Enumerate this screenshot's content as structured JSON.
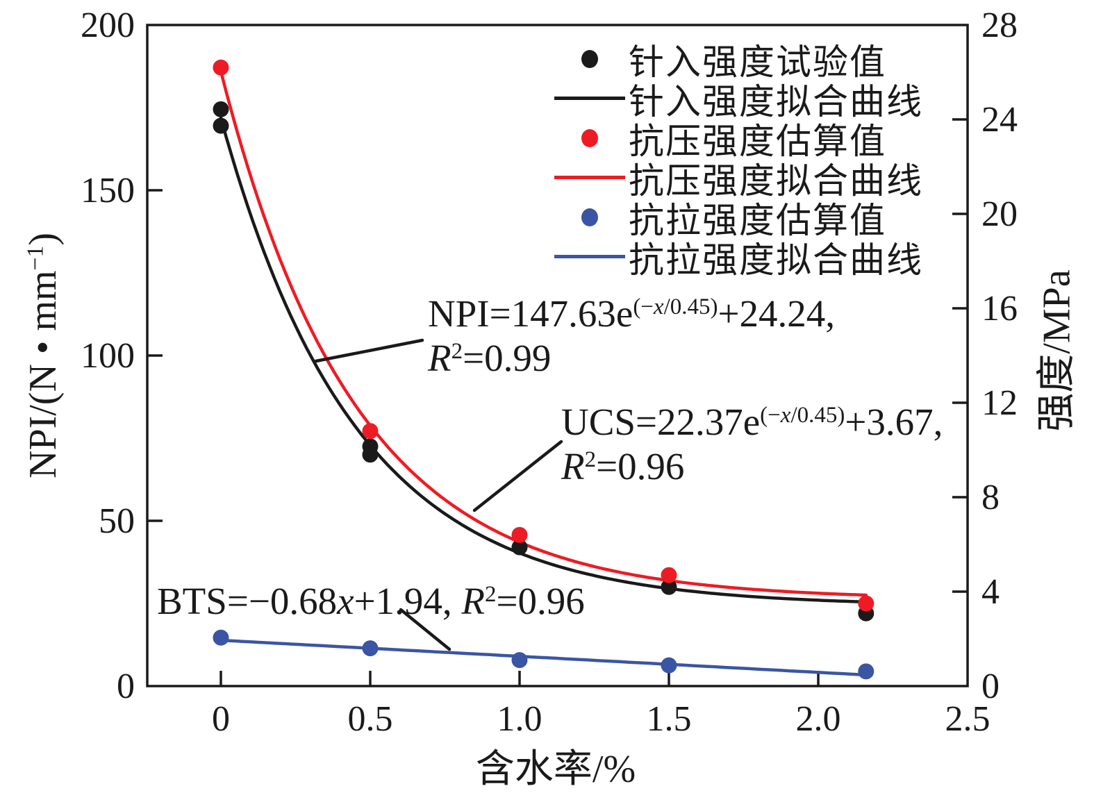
{
  "chart_data": {
    "type": "scatter",
    "title": "",
    "x_axis": {
      "label": "含水率/%",
      "ticks": [
        0,
        0.5,
        1.0,
        1.5,
        2.0,
        2.5
      ],
      "tick_labels": [
        "0",
        "0.5",
        "1.0",
        "1.5",
        "2.0",
        "2.5"
      ],
      "range": [
        -0.25,
        2.5
      ]
    },
    "y_left": {
      "label": "NPI/(N·mm−1)",
      "label_segments": [
        {
          "t": "NPI/(N • mm"
        },
        {
          "t": "−1",
          "sup": true
        },
        {
          "t": ")"
        }
      ],
      "ticks": [
        0,
        50,
        100,
        150,
        200
      ],
      "tick_labels": [
        "0",
        "50",
        "100",
        "150",
        "200"
      ],
      "range": [
        0,
        200
      ]
    },
    "y_right": {
      "label": "强度/MPa",
      "ticks": [
        0,
        4,
        8,
        12,
        16,
        20,
        24,
        28
      ],
      "tick_labels": [
        "0",
        "4",
        "8",
        "12",
        "16",
        "20",
        "24",
        "28"
      ],
      "range": [
        0,
        28
      ]
    },
    "grid": false,
    "legend_position": "upper right, no frame",
    "series": [
      {
        "name": "针入强度试验值",
        "kind": "points",
        "axis": "left",
        "color": "#1a1a1a",
        "points": [
          [
            0,
            174.5
          ],
          [
            0,
            169.5
          ],
          [
            0.5,
            72.5
          ],
          [
            0.5,
            70
          ],
          [
            1.0,
            42
          ],
          [
            1.5,
            30
          ],
          [
            2.16,
            22
          ]
        ]
      },
      {
        "name": "针入强度拟合曲线",
        "kind": "fit",
        "axis": "left",
        "color": "#1a1a1a",
        "formula": "NPI=147.63e(−x/0.45)+24.24",
        "r2": 0.99,
        "fit": {
          "form": "exp",
          "a": 147.63,
          "tau": 0.45,
          "c": 24.24
        },
        "domain": [
          0,
          2.16
        ]
      },
      {
        "name": "抗压强度估算值",
        "kind": "points",
        "axis": "right",
        "color": "#ed1c24",
        "points": [
          [
            0,
            26.2
          ],
          [
            0.5,
            10.8
          ],
          [
            1.0,
            6.4
          ],
          [
            1.5,
            4.7
          ],
          [
            2.16,
            3.5
          ]
        ]
      },
      {
        "name": "抗压强度拟合曲线",
        "kind": "fit",
        "axis": "right",
        "color": "#ed1c24",
        "formula": "UCS=22.37e(−x/0.45)+3.67",
        "r2": 0.96,
        "fit": {
          "form": "exp",
          "a": 22.37,
          "tau": 0.45,
          "c": 3.67
        },
        "domain": [
          0,
          2.16
        ]
      },
      {
        "name": "抗拉强度估算值",
        "kind": "points",
        "axis": "right",
        "color": "#3a55a4",
        "points": [
          [
            0,
            2.05
          ],
          [
            0.5,
            1.6
          ],
          [
            1.0,
            1.1
          ],
          [
            1.5,
            0.88
          ],
          [
            2.16,
            0.62
          ]
        ]
      },
      {
        "name": "抗拉强度拟合曲线",
        "kind": "fit",
        "axis": "right",
        "color": "#3a55a4",
        "formula": "BTS=−0.68x+1.94",
        "r2": 0.96,
        "fit": {
          "form": "linear",
          "m": -0.68,
          "b": 1.94
        },
        "domain": [
          0,
          2.16
        ]
      }
    ],
    "annotations": {
      "npi": {
        "text": "NPI=147.63e(−x/0.45)+24.24, R²=0.99",
        "lines": [
          [
            {
              "t": "NPI=147.63e"
            },
            {
              "t": "(−",
              "sup": true
            },
            {
              "t": "x",
              "sup": true,
              "i": true
            },
            {
              "t": "/0.45)",
              "sup": true
            },
            {
              "t": "+24.24,"
            }
          ],
          [
            {
              "t": "R",
              "i": true
            },
            {
              "t": "2",
              "sup": true
            },
            {
              "t": "=0.99"
            }
          ]
        ],
        "leader": [
          455,
          520,
          608,
          490
        ]
      },
      "ucs": {
        "text": "UCS=22.37e(−x/0.45)+3.67, R²=0.96",
        "lines": [
          [
            {
              "t": "UCS=22.37e"
            },
            {
              "t": "(−",
              "sup": true
            },
            {
              "t": "x",
              "sup": true,
              "i": true
            },
            {
              "t": "/0.45)",
              "sup": true
            },
            {
              "t": "+3.67,"
            }
          ],
          [
            {
              "t": "R",
              "i": true
            },
            {
              "t": "2",
              "sup": true
            },
            {
              "t": "=0.96"
            }
          ]
        ],
        "leader": [
          683,
          735,
          808,
          636
        ]
      },
      "bts": {
        "text": "BTS=−0.68x+1.94, R²=0.96",
        "lines": [
          [
            {
              "t": "BTS=−0.68"
            },
            {
              "t": "x",
              "i": true
            },
            {
              "t": "+1.94, "
            },
            {
              "t": "R",
              "i": true
            },
            {
              "t": "2",
              "sup": true
            },
            {
              "t": "=0.96"
            }
          ]
        ],
        "leader": [
          577,
          878,
          647,
          935
        ]
      }
    }
  },
  "legend": {
    "items": [
      {
        "label": "针入强度试验值",
        "marker": "dot",
        "color": "#1a1a1a"
      },
      {
        "label": "针入强度拟合曲线",
        "marker": "line",
        "color": "#1a1a1a"
      },
      {
        "label": "抗压强度估算值",
        "marker": "dot",
        "color": "#ed1c24"
      },
      {
        "label": "抗压强度拟合曲线",
        "marker": "line",
        "color": "#ed1c24"
      },
      {
        "label": "抗拉强度估算值",
        "marker": "dot",
        "color": "#3a55a4"
      },
      {
        "label": "抗拉强度拟合曲线",
        "marker": "line",
        "color": "#3a55a4"
      }
    ]
  },
  "colors": {
    "black": "#1a1a1a",
    "red": "#ed1c24",
    "blue": "#3a55a4",
    "background": "#ffffff"
  }
}
